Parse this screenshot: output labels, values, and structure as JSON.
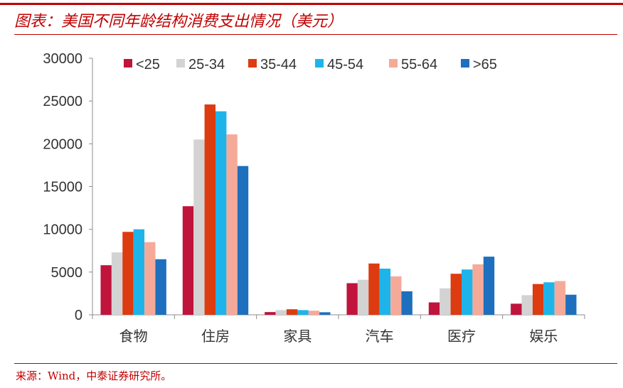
{
  "header": {
    "title": "图表：美国不同年龄结构消费支出情况（美元）"
  },
  "footer": {
    "source": "来源：Wind，中泰证券研究所。"
  },
  "chart_data": {
    "type": "bar",
    "title": "",
    "xlabel": "",
    "ylabel": "",
    "categories": [
      "食物",
      "住房",
      "家具",
      "汽车",
      "医疗",
      "娱乐"
    ],
    "ylim": [
      0,
      30000
    ],
    "yticks": [
      0,
      5000,
      10000,
      15000,
      20000,
      25000,
      30000
    ],
    "legend_position": "top",
    "grid": false,
    "series": [
      {
        "name": "<25",
        "color": "#c0143c",
        "values": [
          5800,
          12700,
          320,
          3700,
          1450,
          1300
        ]
      },
      {
        "name": "25-34",
        "color": "#d3d3d3",
        "values": [
          7300,
          20500,
          550,
          4100,
          3100,
          2300
        ]
      },
      {
        "name": "35-44",
        "color": "#dd3b10",
        "values": [
          9700,
          24600,
          650,
          6000,
          4800,
          3600
        ]
      },
      {
        "name": "45-54",
        "color": "#1eb4ea",
        "values": [
          10000,
          23800,
          550,
          5400,
          5300,
          3800
        ]
      },
      {
        "name": "55-64",
        "color": "#f5aa99",
        "values": [
          8500,
          21100,
          480,
          4500,
          5900,
          3950
        ]
      },
      {
        "name": ">65",
        "color": "#1e6fbd",
        "values": [
          6500,
          17400,
          300,
          2750,
          6800,
          2350
        ]
      }
    ]
  }
}
